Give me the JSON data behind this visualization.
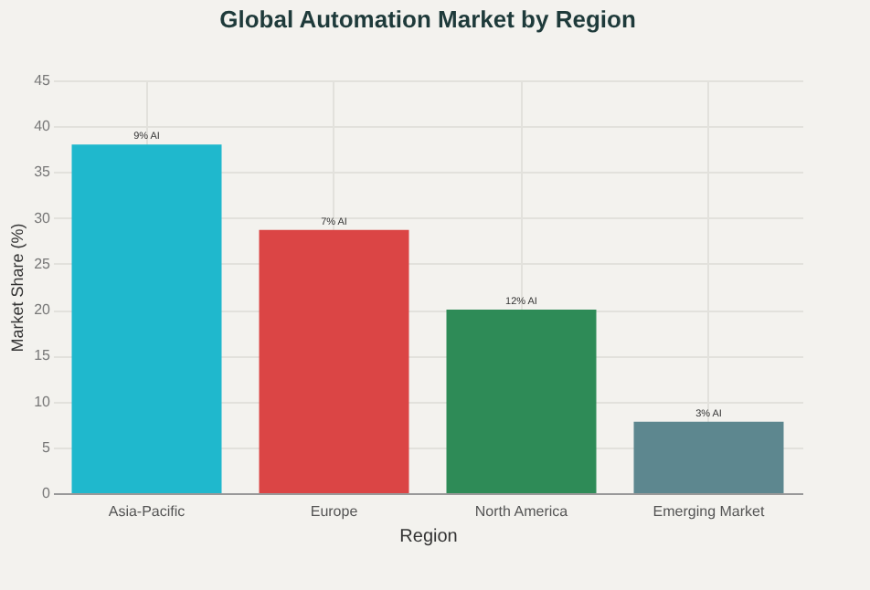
{
  "chart_data": {
    "type": "bar",
    "title": "Global Automation Market by Region",
    "xlabel": "Region",
    "ylabel": "Market Share (%)",
    "categories": [
      "Asia-Pacific",
      "Europe",
      "North America",
      "Emerging Market"
    ],
    "values": [
      38,
      28.7,
      20,
      7.8
    ],
    "colors": [
      "#1fb8cd",
      "#db4545",
      "#2e8b57",
      "#5d878f"
    ],
    "annotations": [
      {
        "text": "9% AI",
        "x": "Asia-Pacific",
        "y": 38
      },
      {
        "text": "7% AI",
        "x": "Europe",
        "y": 28.7
      },
      {
        "text": "12% AI",
        "x": "North America",
        "y": 20
      },
      {
        "text": "3% AI",
        "x": "Emerging Market",
        "y": 7.8
      }
    ],
    "ylim": [
      0,
      45
    ],
    "yticks": [
      0,
      5,
      10,
      15,
      20,
      25,
      30,
      35,
      40,
      45
    ],
    "grid": true
  }
}
